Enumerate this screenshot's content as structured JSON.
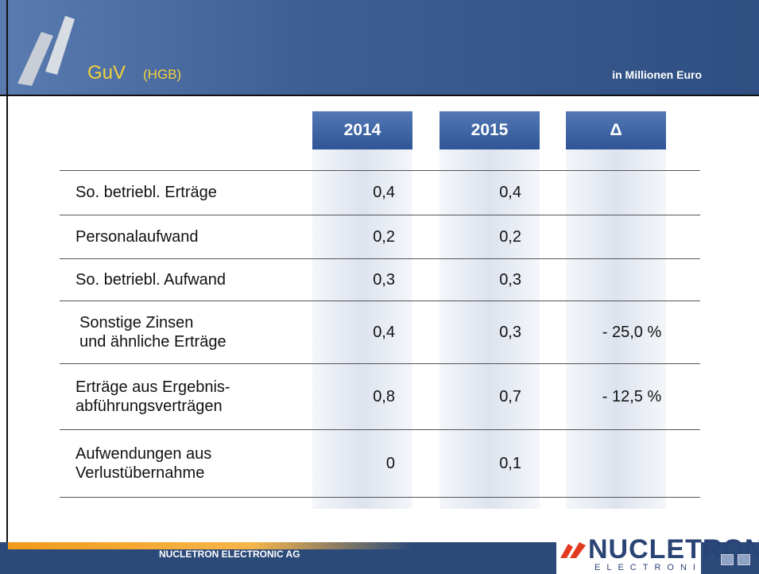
{
  "header": {
    "title": "GuV",
    "subtitle": "(HGB)",
    "unit": "in Millionen Euro"
  },
  "table": {
    "columns": [
      "2014",
      "2015",
      "Δ"
    ],
    "rows": [
      {
        "label": "So. betriebl. Erträge",
        "y2014": "0,4",
        "y2015": "0,4"
      },
      {
        "label": "Personalaufwand",
        "y2014": "0,2",
        "y2015": "0,2"
      },
      {
        "label": "So. betriebl. Aufwand",
        "y2014": "0,3",
        "y2015": "0,3"
      },
      {
        "label": "Sonstige Zinsen\nund ähnliche Erträge",
        "y2014": "0,4",
        "y2015": "0,3",
        "delta": "- 25,0 %"
      },
      {
        "label": "Erträge aus Ergebnis-\nabführungsverträgen",
        "y2014": "0,8",
        "y2015": "0,7",
        "delta": "- 12,5 %"
      },
      {
        "label": "Aufwendungen aus\nVerlustübernahme",
        "y2014": "0",
        "y2015": "0,1"
      }
    ]
  },
  "footer": {
    "company": "NUCLETRON ELECTRONIC AG",
    "logo": "NUCLETRON",
    "logo_sub": "ELECTRONIC AG"
  }
}
